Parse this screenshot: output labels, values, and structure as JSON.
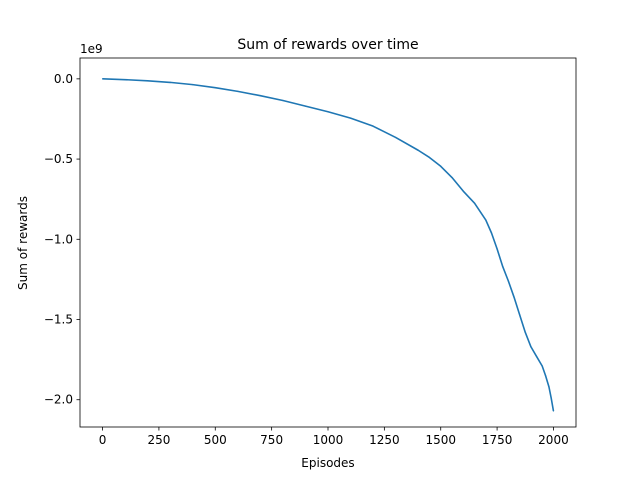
{
  "chart_data": {
    "type": "line",
    "title": "Sum of rewards over time",
    "xlabel": "Episodes",
    "ylabel": "Sum of rewards",
    "y_offset_text": "1e9",
    "xlim": [
      -100,
      2100
    ],
    "ylim": [
      -2.17,
      0.13
    ],
    "x_ticks": [
      0,
      250,
      500,
      750,
      1000,
      1250,
      1500,
      1750,
      2000
    ],
    "x_tick_labels": [
      "0",
      "250",
      "500",
      "750",
      "1000",
      "1250",
      "1500",
      "1750",
      "2000"
    ],
    "y_ticks": [
      0.0,
      -0.5,
      -1.0,
      -1.5,
      -2.0
    ],
    "y_tick_labels": [
      "0.0",
      "−0.5",
      "−1.0",
      "−1.5",
      "−2.0"
    ],
    "grid": false,
    "line_color": "#1f77b4",
    "series": [
      {
        "x": [
          0,
          100,
          200,
          300,
          400,
          500,
          600,
          700,
          800,
          900,
          1000,
          1100,
          1200,
          1300,
          1400,
          1450,
          1500,
          1550,
          1600,
          1650,
          1700,
          1725,
          1750,
          1775,
          1800,
          1825,
          1850,
          1875,
          1900,
          1925,
          1950,
          1965,
          1980,
          1990,
          2000
        ],
        "y": [
          0.0,
          -0.005,
          -0.012,
          -0.022,
          -0.036,
          -0.055,
          -0.078,
          -0.105,
          -0.135,
          -0.17,
          -0.205,
          -0.245,
          -0.295,
          -0.365,
          -0.445,
          -0.49,
          -0.545,
          -0.615,
          -0.7,
          -0.775,
          -0.88,
          -0.96,
          -1.06,
          -1.17,
          -1.26,
          -1.36,
          -1.47,
          -1.58,
          -1.67,
          -1.73,
          -1.79,
          -1.85,
          -1.92,
          -1.99,
          -2.07
        ]
      }
    ]
  }
}
